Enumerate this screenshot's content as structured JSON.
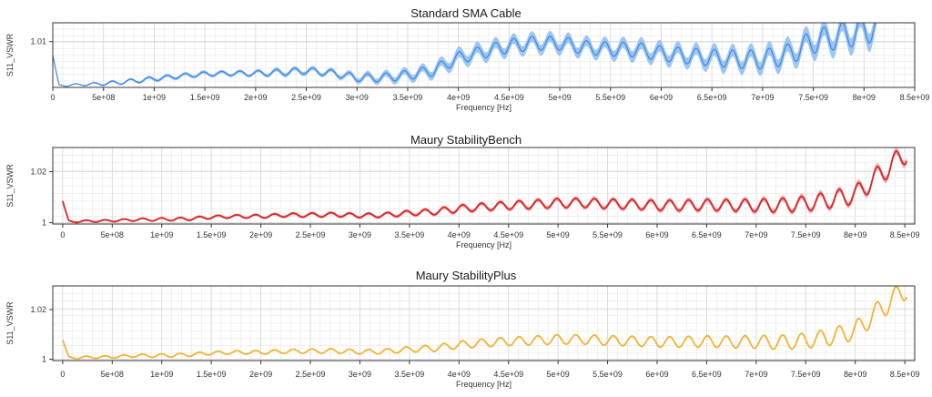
{
  "chart_data": [
    {
      "type": "line",
      "title": "Standard SMA Cable",
      "xlabel": "Frequency [Hz]",
      "ylabel": "S11_VSWR",
      "xlim": [
        0,
        8500000000
      ],
      "ylim": [
        1.0015,
        1.0135
      ],
      "x_ticks": [
        0,
        500000000,
        1000000000,
        1500000000,
        2000000000,
        2500000000,
        3000000000,
        3500000000,
        4000000000,
        4500000000,
        5000000000,
        5500000000,
        6000000000,
        6500000000,
        7000000000,
        7500000000,
        8000000000,
        8500000000
      ],
      "x_tick_labels": [
        "0",
        "5e+08",
        "1e+09",
        "1.5e+09",
        "2e+09",
        "2.5e+09",
        "3e+09",
        "3.5e+09",
        "4e+09",
        "4.5e+09",
        "5e+09",
        "5.5e+09",
        "6e+09",
        "6.5e+09",
        "7e+09",
        "7.5e+09",
        "8e+09",
        "8.5e+09"
      ],
      "y_ticks": [
        1.01
      ],
      "y_tick_labels": [
        "1.01"
      ],
      "grid": true,
      "line_color": "#3d86e0",
      "band_color": "#8cbcf2",
      "x_end": 8150000000,
      "series": [
        {
          "x": [
            0,
            250000000,
            500000000,
            750000000,
            1000000000,
            1250000000,
            1500000000,
            1750000000,
            2000000000,
            2250000000,
            2500000000,
            2750000000,
            3000000000,
            3250000000,
            3500000000,
            3750000000,
            4000000000,
            4250000000,
            4500000000,
            4750000000,
            5000000000,
            5250000000,
            5500000000,
            5750000000,
            6000000000,
            6250000000,
            6500000000,
            6750000000,
            7000000000,
            7250000000,
            7500000000,
            7750000000,
            8000000000,
            8150000000
          ],
          "values": [
            1.0018,
            1.002,
            1.0022,
            1.0026,
            1.0031,
            1.0036,
            1.004,
            1.0041,
            1.0041,
            1.0043,
            1.0046,
            1.0042,
            1.0033,
            1.0033,
            1.0038,
            1.0046,
            1.007,
            1.0081,
            1.0092,
            1.0097,
            1.0097,
            1.0089,
            1.0086,
            1.0085,
            1.0078,
            1.0074,
            1.007,
            1.0067,
            1.0067,
            1.0076,
            1.01,
            1.011,
            1.012,
            1.013
          ],
          "amplitude": [
            0.0002,
            0.0002,
            0.0003,
            0.0004,
            0.0004,
            0.0004,
            0.0004,
            0.0004,
            0.0005,
            0.0006,
            0.0006,
            0.0006,
            0.0007,
            0.0008,
            0.0009,
            0.001,
            0.0011,
            0.0012,
            0.0013,
            0.0013,
            0.0013,
            0.0013,
            0.0013,
            0.0014,
            0.0014,
            0.0015,
            0.0016,
            0.0017,
            0.0018,
            0.002,
            0.0022,
            0.0024,
            0.0026,
            0.0026
          ],
          "band": [
            0.0001,
            0.0001,
            0.0002,
            0.0002,
            0.0003,
            0.0003,
            0.0003,
            0.0003,
            0.0003,
            0.0004,
            0.0004,
            0.0004,
            0.0005,
            0.0006,
            0.0007,
            0.0008,
            0.001,
            0.001,
            0.001,
            0.001,
            0.001,
            0.001,
            0.001,
            0.0011,
            0.0011,
            0.0011,
            0.0012,
            0.0012,
            0.0013,
            0.0014,
            0.0015,
            0.0016,
            0.0017,
            0.0017
          ]
        }
      ],
      "start_spike": 1.0075,
      "period": 180000000
    },
    {
      "type": "line",
      "title": "Maury StabilityBench",
      "xlabel": "Frequency [Hz]",
      "ylabel": "S11_VSWR",
      "xlim": [
        -100000000,
        8600000000
      ],
      "ylim": [
        0.9995,
        1.0295
      ],
      "x_ticks": [
        0,
        500000000,
        1000000000,
        1500000000,
        2000000000,
        2500000000,
        3000000000,
        3500000000,
        4000000000,
        4500000000,
        5000000000,
        5500000000,
        6000000000,
        6500000000,
        7000000000,
        7500000000,
        8000000000,
        8500000000
      ],
      "x_tick_labels": [
        "0",
        "5e+08",
        "1e+09",
        "1.5e+09",
        "2e+09",
        "2.5e+09",
        "3e+09",
        "3.5e+09",
        "4e+09",
        "4.5e+09",
        "5e+09",
        "5.5e+09",
        "6e+09",
        "6.5e+09",
        "7e+09",
        "7.5e+09",
        "8e+09",
        "8.5e+09"
      ],
      "y_ticks": [
        1,
        1.02
      ],
      "y_tick_labels": [
        "1",
        "1.02"
      ],
      "grid": true,
      "line_color": "#d62728",
      "band_color": "#f2a3a3",
      "x_end": 8520000000,
      "series": [
        {
          "x": [
            0,
            250000000,
            500000000,
            750000000,
            1000000000,
            1250000000,
            1500000000,
            1750000000,
            2000000000,
            2250000000,
            2500000000,
            2750000000,
            3000000000,
            3250000000,
            3500000000,
            3750000000,
            4000000000,
            4250000000,
            4500000000,
            4750000000,
            5000000000,
            5250000000,
            5500000000,
            5750000000,
            6000000000,
            6250000000,
            6500000000,
            6750000000,
            7000000000,
            7250000000,
            7500000000,
            7750000000,
            8000000000,
            8250000000,
            8520000000
          ],
          "values": [
            1.0004,
            1.0006,
            1.0008,
            1.0012,
            1.0013,
            1.0015,
            1.0022,
            1.0025,
            1.0025,
            1.003,
            1.003,
            1.0032,
            1.0028,
            1.003,
            1.0038,
            1.0043,
            1.0055,
            1.0062,
            1.0068,
            1.0072,
            1.0077,
            1.0078,
            1.0074,
            1.0072,
            1.0068,
            1.0068,
            1.007,
            1.0068,
            1.0068,
            1.0068,
            1.0075,
            1.009,
            1.011,
            1.019,
            1.0275
          ],
          "amplitude": [
            0.0004,
            0.0004,
            0.0004,
            0.0005,
            0.0006,
            0.0006,
            0.0006,
            0.0006,
            0.0007,
            0.0007,
            0.0008,
            0.0008,
            0.0008,
            0.0009,
            0.001,
            0.0012,
            0.0014,
            0.0015,
            0.0016,
            0.0017,
            0.0018,
            0.0018,
            0.0019,
            0.0019,
            0.002,
            0.0021,
            0.0022,
            0.0023,
            0.0025,
            0.0028,
            0.003,
            0.0033,
            0.0036,
            0.004,
            0.004
          ],
          "band": [
            0.0004,
            0.0004,
            0.0004,
            0.0004,
            0.0004,
            0.0005,
            0.0005,
            0.0005,
            0.0005,
            0.0006,
            0.0006,
            0.0006,
            0.0006,
            0.0006,
            0.0007,
            0.0007,
            0.0008,
            0.0008,
            0.0008,
            0.0009,
            0.0009,
            0.0009,
            0.0009,
            0.0009,
            0.001,
            0.001,
            0.001,
            0.001,
            0.0011,
            0.0011,
            0.0012,
            0.0012,
            0.0013,
            0.0014,
            0.0014
          ]
        }
      ],
      "start_spike": 1.0085,
      "period": 190000000
    },
    {
      "type": "line",
      "title": "Maury StabilityPlus",
      "xlabel": "Frequency [Hz]",
      "ylabel": "S11_VSWR",
      "xlim": [
        -100000000,
        8600000000
      ],
      "ylim": [
        0.9995,
        1.0295
      ],
      "x_ticks": [
        0,
        500000000,
        1000000000,
        1500000000,
        2000000000,
        2500000000,
        3000000000,
        3500000000,
        4000000000,
        4500000000,
        5000000000,
        5500000000,
        6000000000,
        6500000000,
        7000000000,
        7500000000,
        8000000000,
        8500000000
      ],
      "x_tick_labels": [
        "0",
        "5e+08",
        "1e+09",
        "1.5e+09",
        "2e+09",
        "2.5e+09",
        "3e+09",
        "3.5e+09",
        "4e+09",
        "4.5e+09",
        "5e+09",
        "5.5e+09",
        "6e+09",
        "6.5e+09",
        "7e+09",
        "7.5e+09",
        "8e+09",
        "8.5e+09"
      ],
      "y_ticks": [
        1,
        1.02
      ],
      "y_tick_labels": [
        "1",
        "1.02"
      ],
      "grid": true,
      "line_color": "#f2b233",
      "band_color": "#f7d692",
      "x_end": 8520000000,
      "series": [
        {
          "x": [
            0,
            250000000,
            500000000,
            750000000,
            1000000000,
            1250000000,
            1500000000,
            1750000000,
            2000000000,
            2250000000,
            2500000000,
            2750000000,
            3000000000,
            3250000000,
            3500000000,
            3750000000,
            4000000000,
            4250000000,
            4500000000,
            4750000000,
            5000000000,
            5250000000,
            5500000000,
            5750000000,
            6000000000,
            6250000000,
            6500000000,
            6750000000,
            7000000000,
            7250000000,
            7500000000,
            7750000000,
            8000000000,
            8250000000,
            8520000000
          ],
          "values": [
            1.0006,
            1.0008,
            1.001,
            1.0015,
            1.0015,
            1.0018,
            1.0025,
            1.0028,
            1.0028,
            1.0032,
            1.0033,
            1.0034,
            1.003,
            1.0032,
            1.004,
            1.0045,
            1.0058,
            1.0066,
            1.0072,
            1.0076,
            1.008,
            1.008,
            1.0076,
            1.0073,
            1.007,
            1.007,
            1.0072,
            1.007,
            1.007,
            1.0068,
            1.0075,
            1.009,
            1.0115,
            1.02,
            1.0285
          ],
          "amplitude": [
            0.0005,
            0.0005,
            0.0005,
            0.0006,
            0.0007,
            0.0007,
            0.0007,
            0.0007,
            0.0008,
            0.0008,
            0.0009,
            0.0009,
            0.0009,
            0.001,
            0.0011,
            0.0013,
            0.0015,
            0.0016,
            0.0017,
            0.0018,
            0.0019,
            0.0019,
            0.002,
            0.002,
            0.0021,
            0.0022,
            0.0023,
            0.0024,
            0.0026,
            0.0029,
            0.0031,
            0.0034,
            0.0038,
            0.0042,
            0.0042
          ],
          "band": [
            0.0002,
            0.0002,
            0.0002,
            0.0002,
            0.0002,
            0.0002,
            0.0002,
            0.0002,
            0.0002,
            0.0002,
            0.0002,
            0.0002,
            0.0002,
            0.0003,
            0.0003,
            0.0003,
            0.0003,
            0.0003,
            0.0003,
            0.0003,
            0.0003,
            0.0003,
            0.0003,
            0.0003,
            0.0003,
            0.0003,
            0.0003,
            0.0003,
            0.0003,
            0.0004,
            0.0004,
            0.0004,
            0.0004,
            0.0004,
            0.0004
          ]
        }
      ],
      "start_spike": 1.0078,
      "period": 190000000
    }
  ]
}
